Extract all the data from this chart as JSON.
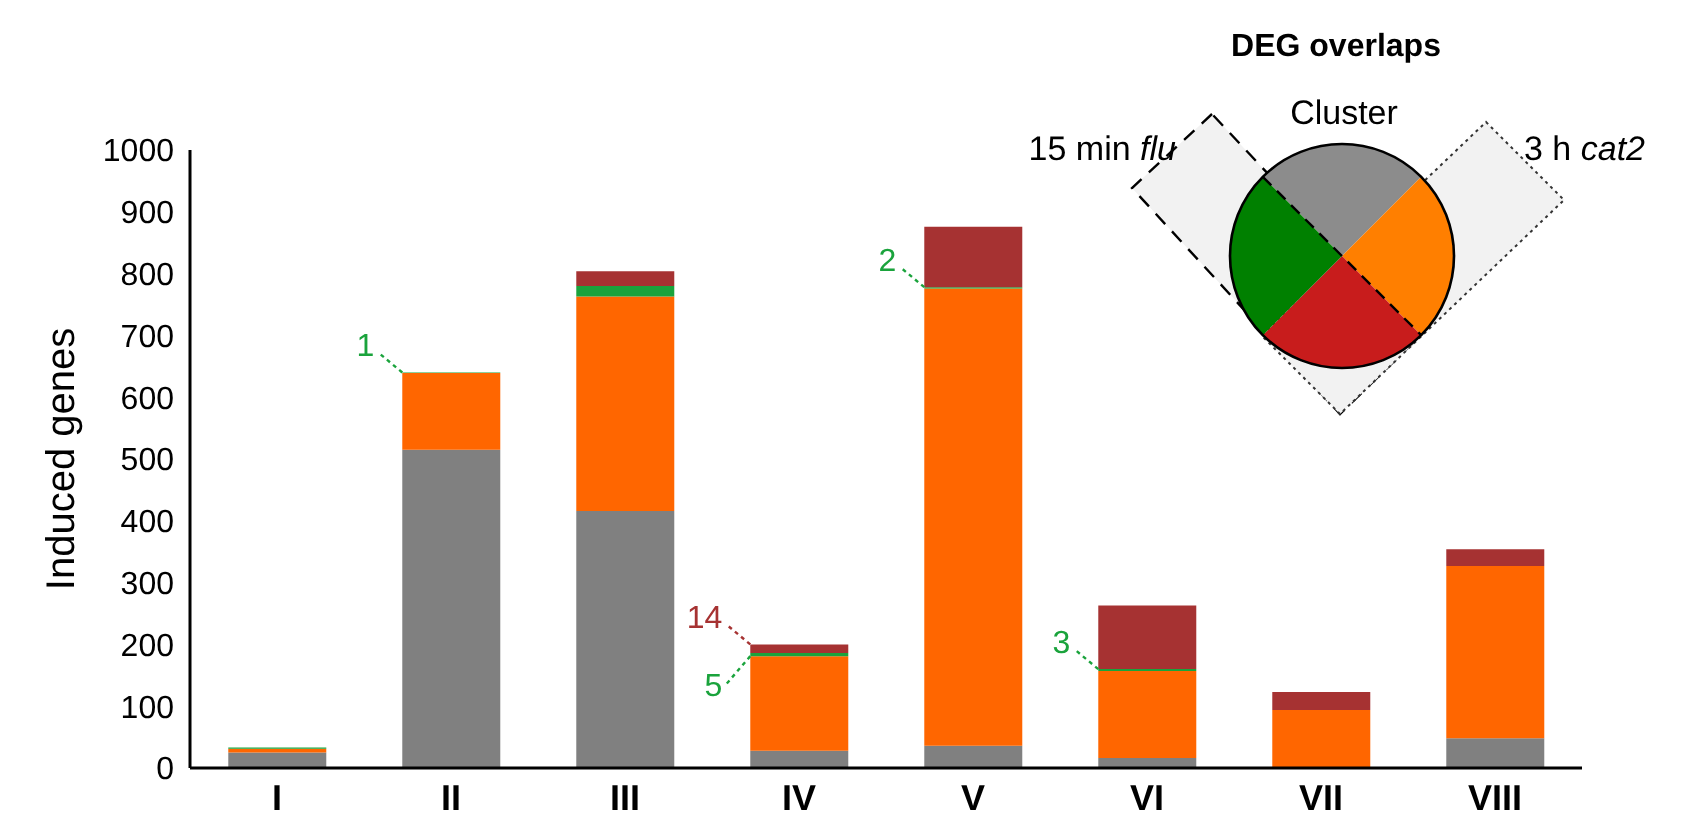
{
  "chart_data": {
    "type": "bar",
    "stacked": true,
    "legend": false,
    "grid": false,
    "ylabel": "Induced genes",
    "categories": [
      "I",
      "II",
      "III",
      "IV",
      "V",
      "VI",
      "VII",
      "VIII"
    ],
    "ylim": [
      0,
      1000
    ],
    "yticks": [
      0,
      100,
      200,
      300,
      400,
      500,
      600,
      700,
      800,
      900,
      1000
    ],
    "series": [
      {
        "color": "#808080",
        "values": [
          25,
          515,
          416,
          28,
          36,
          16,
          0,
          48
        ]
      },
      {
        "color": "#ff6600",
        "values": [
          6,
          124,
          347,
          153,
          740,
          141,
          94,
          279
        ]
      },
      {
        "color": "#1aa33c",
        "values": [
          2,
          1,
          17,
          5,
          2,
          3,
          0,
          0
        ],
        "value_labels": [
          null,
          "1",
          null,
          "5",
          "2",
          "3",
          null,
          null
        ]
      },
      {
        "color": "#a63232",
        "values": [
          0,
          0,
          24,
          14,
          98,
          103,
          29,
          27
        ],
        "value_labels": [
          null,
          null,
          null,
          "14",
          null,
          null,
          null,
          null
        ]
      }
    ],
    "annotations": [
      "DEG overlaps",
      "Cluster",
      "15 min flu",
      "3 h cat2"
    ]
  }
}
